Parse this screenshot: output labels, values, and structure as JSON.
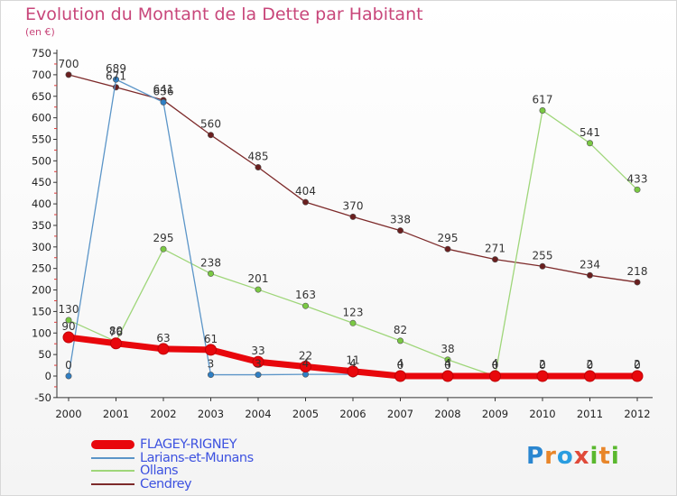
{
  "title": "Evolution du Montant de la Dette par Habitant",
  "subtitle": "(en €)",
  "brand": {
    "letters": [
      "P",
      "r",
      "o",
      "x",
      "i",
      "t",
      "i"
    ],
    "colors": [
      "#2a86d0",
      "#e8862a",
      "#2a9de0",
      "#e04a3a",
      "#5ab82e",
      "#e8862a",
      "#5ab82e"
    ]
  },
  "chart_data": {
    "type": "line",
    "categories": [
      "2000",
      "2001",
      "2002",
      "2003",
      "2004",
      "2005",
      "2006",
      "2007",
      "2008",
      "2009",
      "2010",
      "2011",
      "2012"
    ],
    "yticks": [
      "-50",
      "0",
      "50",
      "100",
      "150",
      "200",
      "250",
      "300",
      "350",
      "400",
      "450",
      "500",
      "550",
      "600",
      "650",
      "700",
      "750"
    ],
    "ylim": [
      -50,
      750
    ],
    "grid": false,
    "legend_position": "bottom-left",
    "series": [
      {
        "name": "FLAGEY-RIGNEY",
        "color": "#e8070c",
        "marker": "#e8070c",
        "values": [
          90,
          76,
          63,
          61,
          33,
          22,
          11,
          0,
          0,
          0,
          0,
          0,
          0
        ],
        "labels": [
          "90",
          "76",
          "63",
          "61",
          "33",
          "22",
          "11",
          "0",
          "0",
          "0",
          "0",
          "0",
          "0"
        ]
      },
      {
        "name": "Larians-et-Munans",
        "color": "#5b95c8",
        "marker": "#2f7fc4",
        "values": [
          0,
          689,
          636,
          3,
          3,
          4,
          4,
          4,
          4,
          4,
          2,
          2,
          2
        ],
        "labels": [
          "0",
          "689",
          "636",
          "3",
          "3",
          "4",
          "4",
          "4",
          "4",
          "4",
          "2",
          "2",
          "2"
        ]
      },
      {
        "name": "Ollans",
        "color": "#9fd67a",
        "marker": "#7ac943",
        "values": [
          130,
          80,
          295,
          238,
          201,
          163,
          123,
          82,
          38,
          0,
          617,
          541,
          433
        ],
        "labels": [
          "130",
          "80",
          "295",
          "238",
          "201",
          "163",
          "123",
          "82",
          "38",
          "0",
          "617",
          "541",
          "433"
        ]
      },
      {
        "name": "Cendrey",
        "color": "#7d2a2a",
        "marker": "#6a1f1f",
        "values": [
          700,
          671,
          641,
          560,
          485,
          404,
          370,
          338,
          295,
          271,
          255,
          234,
          218
        ],
        "labels": [
          "700",
          "671",
          "641",
          "560",
          "485",
          "404",
          "370",
          "338",
          "295",
          "271",
          "255",
          "234",
          "218"
        ]
      }
    ]
  }
}
